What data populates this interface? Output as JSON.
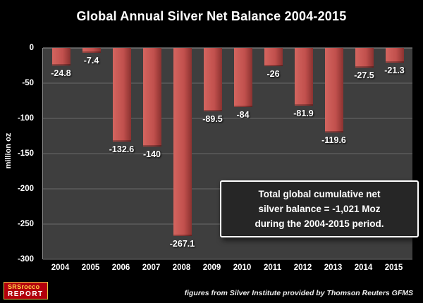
{
  "title": "Global Annual Silver Net Balance 2004-2015",
  "chart_data": {
    "type": "bar",
    "title": "Global Annual Silver Net Balance 2004-2015",
    "categories": [
      "2004",
      "2005",
      "2006",
      "2007",
      "2008",
      "2009",
      "2010",
      "2011",
      "2012",
      "2013",
      "2014",
      "2015"
    ],
    "values": [
      -24.8,
      -7.4,
      -132.6,
      -140,
      -267.1,
      -89.5,
      -84,
      -26,
      -81.9,
      -119.6,
      -27.5,
      -21.3
    ],
    "value_labels": [
      "-24.8",
      "-7.4",
      "-132.6",
      "-140",
      "-267.1",
      "-89.5",
      "-84",
      "-26",
      "-81.9",
      "-119.6",
      "-27.5",
      "-21.3"
    ],
    "xlabel": "",
    "ylabel": "million oz",
    "ylim": [
      -300,
      0
    ],
    "yticks": [
      0,
      -50,
      -100,
      -150,
      -200,
      -250,
      -300
    ],
    "grid": true,
    "legend": false,
    "bar_color": "#c1504d",
    "plot_background": "#3e3e3e",
    "page_background": "#000000"
  },
  "annotation": {
    "lines": [
      "Total global cumulative net",
      "silver balance = -1,021 Moz",
      "during the 2004-2015 period."
    ]
  },
  "footer": {
    "logo_line1": "SRSrocco",
    "logo_line2": "REPORT",
    "source": "figures from Silver Institute provided by Thomson Reuters GFMS"
  }
}
